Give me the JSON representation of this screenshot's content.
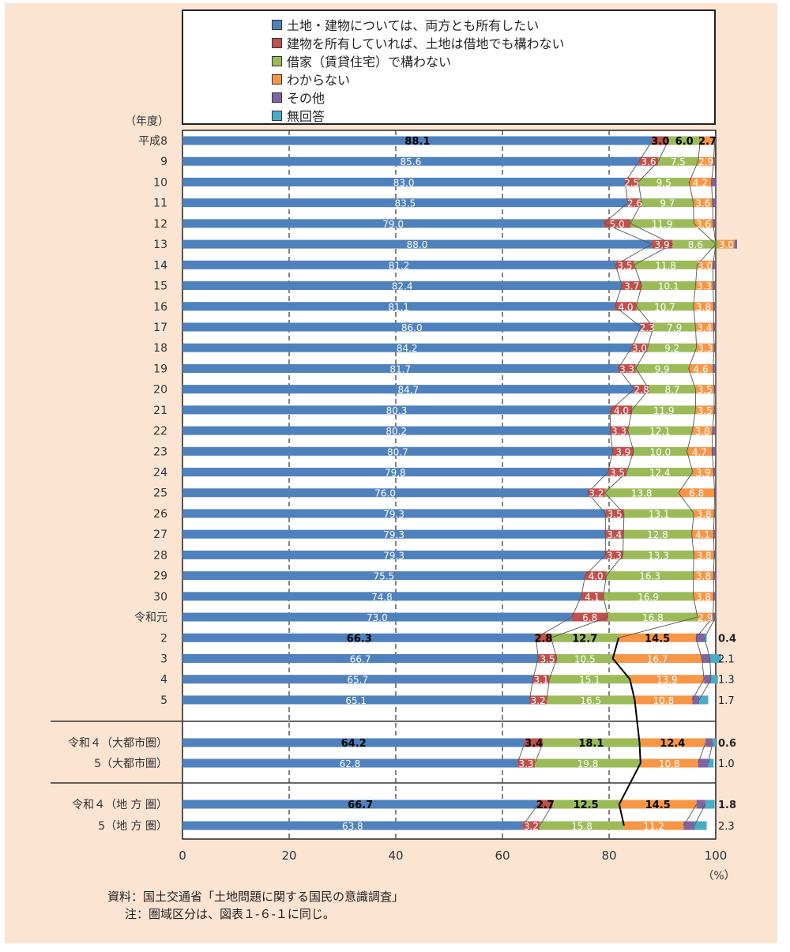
{
  "chart_data": {
    "type": "bar",
    "orientation": "horizontal",
    "stacked": true,
    "y_axis_title": "（年度）",
    "x_unit": "（%）",
    "xlim": [
      0,
      100
    ],
    "x_ticks": [
      "0",
      "20",
      "40",
      "60",
      "80",
      "100"
    ],
    "grid": "vertical dashed",
    "legend_position": "top",
    "categories": [
      "平成8",
      "9",
      "10",
      "11",
      "12",
      "13",
      "14",
      "15",
      "16",
      "17",
      "18",
      "19",
      "20",
      "21",
      "22",
      "23",
      "24",
      "25",
      "26",
      "27",
      "28",
      "29",
      "30",
      "令和元",
      "2",
      "3",
      "4",
      "5",
      "令和４（大都市圏）",
      "5（大都市圏）",
      "令和４（地 方 圏）",
      "5（地 方 圏）"
    ],
    "series": [
      {
        "name": "土地・建物については、両方とも所有したい",
        "color": "#4f81bd",
        "values": [
          88.1,
          85.6,
          83.0,
          83.5,
          79.0,
          88.0,
          81.2,
          82.4,
          81.1,
          86.0,
          84.2,
          81.7,
          84.7,
          80.3,
          80.2,
          80.7,
          79.8,
          76.0,
          79.3,
          79.3,
          79.3,
          75.5,
          74.8,
          73.0,
          66.3,
          66.7,
          65.7,
          65.1,
          64.2,
          62.8,
          66.7,
          63.8
        ]
      },
      {
        "name": "建物を所有していれば、土地は借地でも構わない",
        "color": "#c0504d",
        "values": [
          3.0,
          3.6,
          2.5,
          2.6,
          5.0,
          3.9,
          3.5,
          3.7,
          4.0,
          2.3,
          3.0,
          3.3,
          2.8,
          4.0,
          3.3,
          3.9,
          3.5,
          3.2,
          3.5,
          3.4,
          3.3,
          4.0,
          4.1,
          6.8,
          2.8,
          3.5,
          3.1,
          3.2,
          3.4,
          3.3,
          2.7,
          3.2
        ]
      },
      {
        "name": "借家（賃貸住宅）で構わない",
        "color": "#9bbb59",
        "values": [
          6.0,
          7.5,
          9.5,
          9.7,
          11.9,
          8.6,
          11.8,
          10.1,
          10.7,
          7.9,
          9.2,
          9.9,
          8.7,
          11.9,
          12.1,
          10.0,
          12.4,
          13.8,
          13.1,
          12.8,
          13.3,
          16.3,
          16.9,
          16.8,
          12.7,
          10.5,
          15.1,
          16.5,
          18.1,
          19.8,
          12.5,
          15.8
        ]
      },
      {
        "name": "わからない",
        "color": "#f79646",
        "values": [
          2.7,
          2.9,
          4.2,
          3.6,
          3.6,
          3.0,
          3.0,
          3.3,
          3.8,
          3.4,
          3.3,
          4.6,
          3.5,
          3.5,
          3.8,
          4.7,
          3.9,
          6.8,
          3.8,
          4.1,
          3.8,
          3.8,
          3.8,
          2.9,
          14.5,
          16.7,
          13.9,
          10.8,
          12.4,
          10.8,
          14.5,
          11.2
        ]
      },
      {
        "name": "その他",
        "color": "#8064a2",
        "values": [
          0.1,
          0.3,
          0.8,
          0.6,
          0.5,
          0.5,
          0.5,
          0.5,
          0.4,
          0.4,
          0.3,
          0.5,
          0.3,
          0.3,
          0.6,
          0.7,
          0.4,
          0.2,
          0.3,
          0.4,
          0.3,
          0.4,
          0.4,
          0.5,
          1.6,
          1.5,
          1.3,
          1.3,
          1.3,
          1.9,
          1.6,
          2.0
        ]
      },
      {
        "name": "無回答",
        "color": "#4bacc6",
        "values": [
          0.1,
          0.1,
          0.0,
          0.0,
          0.0,
          0.0,
          0.0,
          0.0,
          0.0,
          0.0,
          0.0,
          0.0,
          0.0,
          0.0,
          0.0,
          0.0,
          0.0,
          0.0,
          0.0,
          0.0,
          0.0,
          0.0,
          0.0,
          0.0,
          0.4,
          2.1,
          1.3,
          1.7,
          0.6,
          1.0,
          1.8,
          2.3
        ]
      }
    ]
  },
  "notes": {
    "source": "資料：国土交通省「土地問題に関する国民の意識調査」",
    "note": "注：圏域区分は、図表１-６-１に同じ。"
  }
}
